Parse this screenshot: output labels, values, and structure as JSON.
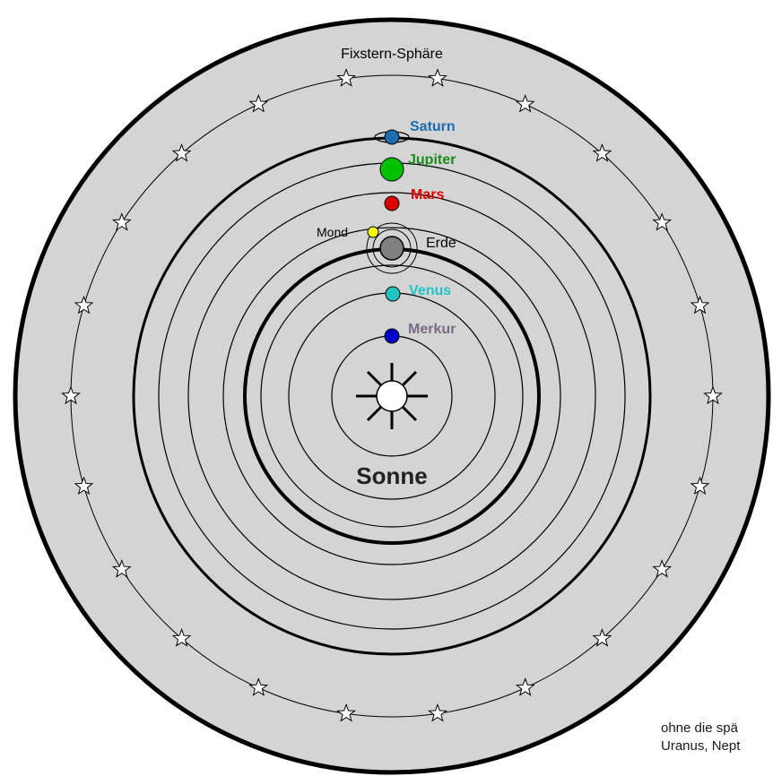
{
  "sphere_label": "Fixstern-Sphäre",
  "sun_label": "Sonne",
  "earth_label": "Erde",
  "moon_label": "Mond",
  "planets": [
    {
      "name": "Merkur",
      "color": "#0000cc",
      "label_color": "#7b6b85"
    },
    {
      "name": "Venus",
      "color": "#22c4c4",
      "label_color": "#22c4c4"
    },
    {
      "name": "Mars",
      "color": "#dd0000",
      "label_color": "#dd0000"
    },
    {
      "name": "Jupiter",
      "color": "#00c000",
      "label_color": "#1a8a1a"
    },
    {
      "name": "Saturn",
      "color": "#1a6eb0",
      "label_color": "#1a6eb0"
    }
  ],
  "colors": {
    "background_disc": "#d4d4d4",
    "earth": "#808080",
    "moon": "#ffff00",
    "sun": "#ffffff",
    "orbit": "#000000"
  },
  "footnote": {
    "line1": "ohne die spä",
    "line2": "Uranus, Nept"
  }
}
